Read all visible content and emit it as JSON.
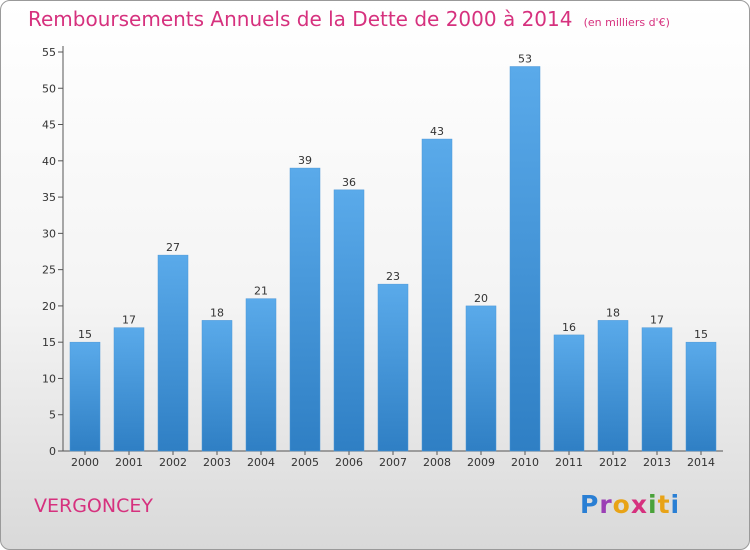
{
  "header": {
    "title": "Remboursements Annuels de la Dette de 2000 à 2014",
    "unit": "(en milliers d'€)"
  },
  "footer": {
    "commune": "VERGONCEY"
  },
  "logo": {
    "letters": [
      {
        "char": "P",
        "color": "#2a7fd4"
      },
      {
        "char": "r",
        "color": "#9b3fb5"
      },
      {
        "char": "o",
        "color": "#e8a317"
      },
      {
        "char": "x",
        "color": "#d6317e"
      },
      {
        "char": "i",
        "color": "#4aa23a"
      },
      {
        "char": "t",
        "color": "#e8a317"
      },
      {
        "char": "i",
        "color": "#2a7fd4"
      }
    ]
  },
  "colors": {
    "bar_top": "#5aaaea",
    "bar_bottom": "#2f7fc4",
    "title": "#d6317e",
    "axis_text": "#333333"
  },
  "chart_data": {
    "type": "bar",
    "title": "Remboursements Annuels de la Dette de 2000 à 2014",
    "subtitle": "(en milliers d'€)",
    "xlabel": "",
    "ylabel": "",
    "categories": [
      "2000",
      "2001",
      "2002",
      "2003",
      "2004",
      "2005",
      "2006",
      "2007",
      "2008",
      "2009",
      "2010",
      "2011",
      "2012",
      "2013",
      "2014"
    ],
    "values": [
      15,
      17,
      27,
      18,
      21,
      39,
      36,
      23,
      43,
      20,
      53,
      16,
      18,
      17,
      15
    ],
    "ylim": [
      0,
      55
    ],
    "yticks": [
      0,
      5,
      10,
      15,
      20,
      25,
      30,
      35,
      40,
      45,
      50,
      55
    ],
    "grid": false,
    "data_labels": true
  }
}
